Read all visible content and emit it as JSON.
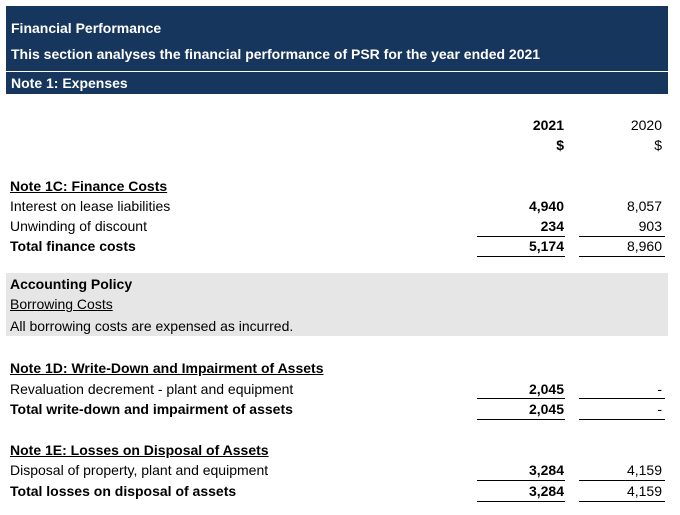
{
  "header": {
    "title": "Financial Performance",
    "subtitle": "This section analyses the financial performance of PSR for the year ended 2021"
  },
  "note1_title": "Note 1: Expenses",
  "columns": {
    "y2021": "2021",
    "cur2021": "$",
    "y2020": "2020",
    "cur2020": "$"
  },
  "note1c": {
    "title": "Note 1C: Finance Costs",
    "rows": [
      {
        "label": "Interest on lease liabilities",
        "v2021": "4,940",
        "v2020": "8,057"
      },
      {
        "label": "Unwinding of discount",
        "v2021": "234",
        "v2020": "903"
      }
    ],
    "total": {
      "label": "Total finance costs",
      "v2021": "5,174",
      "v2020": "8,960"
    }
  },
  "policy": {
    "title": "Accounting Policy",
    "subtitle": "Borrowing Costs",
    "text": "All borrowing costs are expensed as incurred."
  },
  "note1d": {
    "title": "Note 1D: Write-Down and Impairment of Assets",
    "rows": [
      {
        "label": "Revaluation decrement - plant and equipment",
        "v2021": "2,045",
        "v2020": "-"
      }
    ],
    "total": {
      "label": "Total write-down and impairment of assets",
      "v2021": "2,045",
      "v2020": "-"
    }
  },
  "note1e": {
    "title": "Note 1E: Losses on Disposal of Assets",
    "rows": [
      {
        "label": "Disposal of property, plant and equipment",
        "v2021": "3,284",
        "v2020": "4,159"
      }
    ],
    "total": {
      "label": "Total losses on disposal of assets",
      "v2021": "3,284",
      "v2020": "4,159"
    }
  },
  "colors": {
    "header_bg": "#17365d",
    "policy_bg": "#e6e6e6"
  }
}
